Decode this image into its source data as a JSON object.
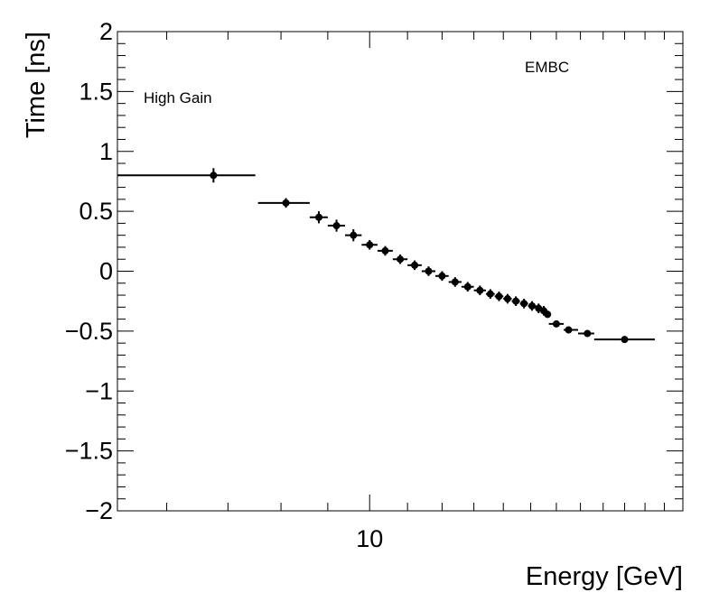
{
  "chart_data": {
    "type": "scatter",
    "title": "",
    "xlabel": "Energy [GeV]",
    "ylabel": "Time [ns]",
    "xscale": "log",
    "xlim": [
      5.3,
      22.0
    ],
    "ylim": [
      -2,
      2
    ],
    "x_tick_labels": [
      {
        "value": 10,
        "label": "10"
      }
    ],
    "y_tick_labels": [
      {
        "value": 2,
        "label": "2"
      },
      {
        "value": 1.5,
        "label": "1.5"
      },
      {
        "value": 1,
        "label": "1"
      },
      {
        "value": 0.5,
        "label": "0.5"
      },
      {
        "value": 0,
        "label": "0"
      },
      {
        "value": -0.5,
        "label": "−0.5"
      },
      {
        "value": -1,
        "label": "−1"
      },
      {
        "value": -1.5,
        "label": "−1.5"
      },
      {
        "value": -2,
        "label": "−2"
      }
    ],
    "annotations": {
      "gain": "High Gain",
      "region": "EMBC"
    },
    "series": [
      {
        "name": "High Gain EMBC",
        "points": [
          {
            "x": 6.75,
            "xlo": 5.3,
            "xhi": 7.5,
            "y": 0.8,
            "yerr": 0.06
          },
          {
            "x": 8.1,
            "xlo": 7.55,
            "xhi": 8.6,
            "y": 0.57,
            "yerr": 0.04
          },
          {
            "x": 8.8,
            "xlo": 8.6,
            "xhi": 9.0,
            "y": 0.45,
            "yerr": 0.05
          },
          {
            "x": 9.2,
            "xlo": 9.0,
            "xhi": 9.4,
            "y": 0.38,
            "yerr": 0.05
          },
          {
            "x": 9.6,
            "xlo": 9.4,
            "xhi": 9.8,
            "y": 0.3,
            "yerr": 0.05
          },
          {
            "x": 10.0,
            "xlo": 9.8,
            "xhi": 10.2,
            "y": 0.22,
            "yerr": 0.04
          },
          {
            "x": 10.4,
            "xlo": 10.2,
            "xhi": 10.6,
            "y": 0.17,
            "yerr": 0.04
          },
          {
            "x": 10.8,
            "xlo": 10.6,
            "xhi": 11.0,
            "y": 0.1,
            "yerr": 0.04
          },
          {
            "x": 11.2,
            "xlo": 11.0,
            "xhi": 11.4,
            "y": 0.05,
            "yerr": 0.04
          },
          {
            "x": 11.6,
            "xlo": 11.4,
            "xhi": 11.8,
            "y": 0.0,
            "yerr": 0.04
          },
          {
            "x": 12.0,
            "xlo": 11.8,
            "xhi": 12.2,
            "y": -0.04,
            "yerr": 0.04
          },
          {
            "x": 12.4,
            "xlo": 12.2,
            "xhi": 12.6,
            "y": -0.09,
            "yerr": 0.04
          },
          {
            "x": 12.8,
            "xlo": 12.6,
            "xhi": 13.0,
            "y": -0.13,
            "yerr": 0.04
          },
          {
            "x": 13.2,
            "xlo": 13.0,
            "xhi": 13.4,
            "y": -0.16,
            "yerr": 0.04
          },
          {
            "x": 13.55,
            "xlo": 13.4,
            "xhi": 13.7,
            "y": -0.19,
            "yerr": 0.04
          },
          {
            "x": 13.85,
            "xlo": 13.7,
            "xhi": 14.0,
            "y": -0.21,
            "yerr": 0.04
          },
          {
            "x": 14.15,
            "xlo": 14.0,
            "xhi": 14.3,
            "y": -0.23,
            "yerr": 0.04
          },
          {
            "x": 14.45,
            "xlo": 14.3,
            "xhi": 14.6,
            "y": -0.25,
            "yerr": 0.04
          },
          {
            "x": 14.75,
            "xlo": 14.6,
            "xhi": 14.9,
            "y": -0.27,
            "yerr": 0.04
          },
          {
            "x": 15.05,
            "xlo": 14.9,
            "xhi": 15.2,
            "y": -0.29,
            "yerr": 0.04
          },
          {
            "x": 15.3,
            "xlo": 15.2,
            "xhi": 15.4,
            "y": -0.31,
            "yerr": 0.04
          },
          {
            "x": 15.5,
            "xlo": 15.4,
            "xhi": 15.6,
            "y": -0.33,
            "yerr": 0.04
          },
          {
            "x": 15.65,
            "xlo": 15.6,
            "xhi": 15.7,
            "y": -0.36,
            "yerr": 0.03
          },
          {
            "x": 16.0,
            "xlo": 15.7,
            "xhi": 16.3,
            "y": -0.44,
            "yerr": 0.02
          },
          {
            "x": 16.5,
            "xlo": 16.3,
            "xhi": 16.9,
            "y": -0.49,
            "yerr": 0.02
          },
          {
            "x": 17.3,
            "xlo": 16.9,
            "xhi": 17.6,
            "y": -0.52,
            "yerr": 0.02
          },
          {
            "x": 19.0,
            "xlo": 17.6,
            "xhi": 20.5,
            "y": -0.57,
            "yerr": 0.02
          }
        ]
      }
    ]
  }
}
